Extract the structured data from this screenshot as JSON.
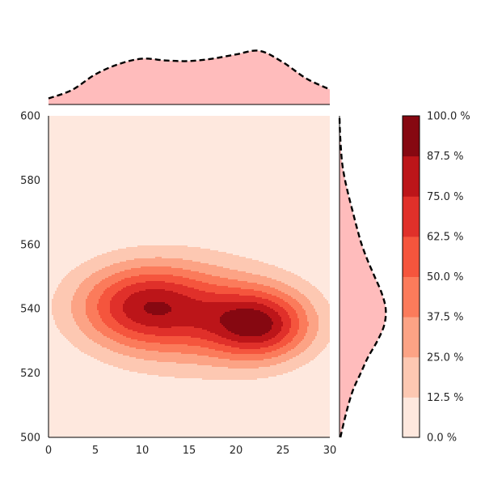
{
  "chart_data": {
    "type": "heatmap",
    "subtype": "kde-contour-with-marginals",
    "title": "",
    "xlabel": "",
    "ylabel": "",
    "xlim": [
      0,
      30
    ],
    "ylim": [
      500,
      600
    ],
    "x_ticks": [
      "0",
      "5",
      "10",
      "15",
      "20",
      "25",
      "30"
    ],
    "y_ticks": [
      "500",
      "520",
      "540",
      "560",
      "580",
      "600"
    ],
    "grid": false,
    "colorbar": {
      "ticks": [
        "0.0 %",
        "12.5 %",
        "25.0 %",
        "37.5 %",
        "50.0 %",
        "62.5 %",
        "75.0 %",
        "87.5 %",
        "100.0 %"
      ],
      "colors": [
        "#fee8de",
        "#fdc8b2",
        "#fca385",
        "#fb7b5b",
        "#f5553d",
        "#e0302a",
        "#bc1519",
        "#860811"
      ]
    },
    "density_peaks": [
      {
        "x": 10,
        "y": 541,
        "sx": 5.0,
        "sy": 9.0,
        "weight": 0.85
      },
      {
        "x": 22.5,
        "y": 535,
        "sx": 3.8,
        "sy": 7.5,
        "weight": 1.0
      },
      {
        "x": 16,
        "y": 538,
        "sx": 7.0,
        "sy": 12.0,
        "weight": 0.55
      }
    ],
    "marginal_x": {
      "x": [
        0,
        2.5,
        5,
        7.5,
        10,
        12.5,
        15,
        17.5,
        20,
        22.5,
        25,
        27.5,
        30
      ],
      "density": [
        0.1,
        0.24,
        0.5,
        0.67,
        0.76,
        0.73,
        0.72,
        0.76,
        0.83,
        0.89,
        0.7,
        0.43,
        0.25
      ]
    },
    "marginal_y": {
      "y": [
        500,
        505,
        510,
        515,
        520,
        525,
        530,
        535,
        540,
        545,
        550,
        555,
        560,
        565,
        570,
        575,
        580,
        585,
        590,
        595,
        600
      ],
      "density": [
        0.02,
        0.1,
        0.19,
        0.3,
        0.46,
        0.62,
        0.82,
        0.97,
        1.0,
        0.91,
        0.76,
        0.61,
        0.48,
        0.38,
        0.29,
        0.2,
        0.12,
        0.06,
        0.03,
        0.01,
        0.0
      ]
    },
    "marginal_fill": "#ffbcbc",
    "marginal_line_style": "dashed"
  }
}
